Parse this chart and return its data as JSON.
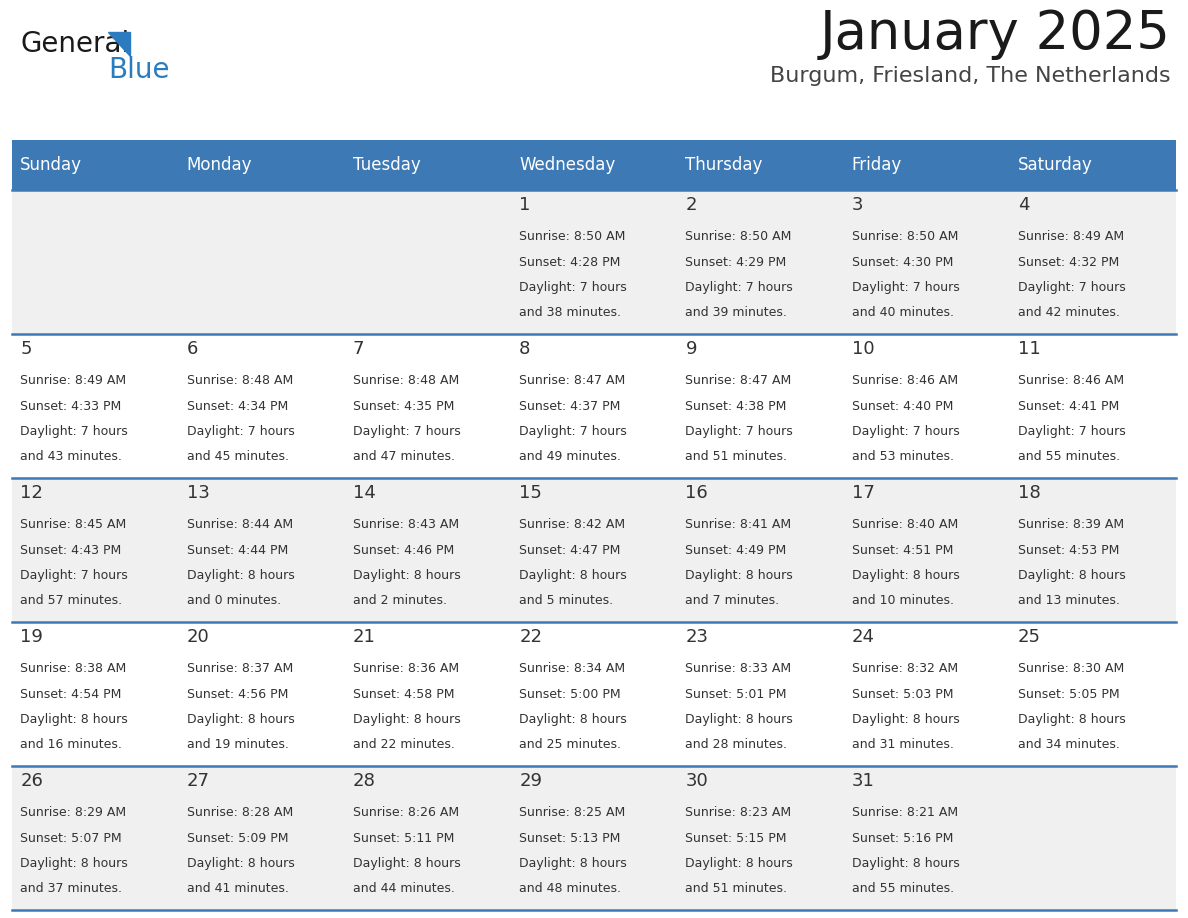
{
  "title": "January 2025",
  "subtitle": "Burgum, Friesland, The Netherlands",
  "days_of_week": [
    "Sunday",
    "Monday",
    "Tuesday",
    "Wednesday",
    "Thursday",
    "Friday",
    "Saturday"
  ],
  "header_bg": "#3d7ab5",
  "header_text": "#ffffff",
  "row_bg_odd": "#f0f0f0",
  "row_bg_even": "#ffffff",
  "day_num_color": "#333333",
  "info_text_color": "#333333",
  "separator_color": "#3d7ab5",
  "cell_data": [
    [
      null,
      null,
      null,
      {
        "day": 1,
        "sunrise": "8:50 AM",
        "sunset": "4:28 PM",
        "daylight": "7 hours",
        "daylight2": "and 38 minutes."
      },
      {
        "day": 2,
        "sunrise": "8:50 AM",
        "sunset": "4:29 PM",
        "daylight": "7 hours",
        "daylight2": "and 39 minutes."
      },
      {
        "day": 3,
        "sunrise": "8:50 AM",
        "sunset": "4:30 PM",
        "daylight": "7 hours",
        "daylight2": "and 40 minutes."
      },
      {
        "day": 4,
        "sunrise": "8:49 AM",
        "sunset": "4:32 PM",
        "daylight": "7 hours",
        "daylight2": "and 42 minutes."
      }
    ],
    [
      {
        "day": 5,
        "sunrise": "8:49 AM",
        "sunset": "4:33 PM",
        "daylight": "7 hours",
        "daylight2": "and 43 minutes."
      },
      {
        "day": 6,
        "sunrise": "8:48 AM",
        "sunset": "4:34 PM",
        "daylight": "7 hours",
        "daylight2": "and 45 minutes."
      },
      {
        "day": 7,
        "sunrise": "8:48 AM",
        "sunset": "4:35 PM",
        "daylight": "7 hours",
        "daylight2": "and 47 minutes."
      },
      {
        "day": 8,
        "sunrise": "8:47 AM",
        "sunset": "4:37 PM",
        "daylight": "7 hours",
        "daylight2": "and 49 minutes."
      },
      {
        "day": 9,
        "sunrise": "8:47 AM",
        "sunset": "4:38 PM",
        "daylight": "7 hours",
        "daylight2": "and 51 minutes."
      },
      {
        "day": 10,
        "sunrise": "8:46 AM",
        "sunset": "4:40 PM",
        "daylight": "7 hours",
        "daylight2": "and 53 minutes."
      },
      {
        "day": 11,
        "sunrise": "8:46 AM",
        "sunset": "4:41 PM",
        "daylight": "7 hours",
        "daylight2": "and 55 minutes."
      }
    ],
    [
      {
        "day": 12,
        "sunrise": "8:45 AM",
        "sunset": "4:43 PM",
        "daylight": "7 hours",
        "daylight2": "and 57 minutes."
      },
      {
        "day": 13,
        "sunrise": "8:44 AM",
        "sunset": "4:44 PM",
        "daylight": "8 hours",
        "daylight2": "and 0 minutes."
      },
      {
        "day": 14,
        "sunrise": "8:43 AM",
        "sunset": "4:46 PM",
        "daylight": "8 hours",
        "daylight2": "and 2 minutes."
      },
      {
        "day": 15,
        "sunrise": "8:42 AM",
        "sunset": "4:47 PM",
        "daylight": "8 hours",
        "daylight2": "and 5 minutes."
      },
      {
        "day": 16,
        "sunrise": "8:41 AM",
        "sunset": "4:49 PM",
        "daylight": "8 hours",
        "daylight2": "and 7 minutes."
      },
      {
        "day": 17,
        "sunrise": "8:40 AM",
        "sunset": "4:51 PM",
        "daylight": "8 hours",
        "daylight2": "and 10 minutes."
      },
      {
        "day": 18,
        "sunrise": "8:39 AM",
        "sunset": "4:53 PM",
        "daylight": "8 hours",
        "daylight2": "and 13 minutes."
      }
    ],
    [
      {
        "day": 19,
        "sunrise": "8:38 AM",
        "sunset": "4:54 PM",
        "daylight": "8 hours",
        "daylight2": "and 16 minutes."
      },
      {
        "day": 20,
        "sunrise": "8:37 AM",
        "sunset": "4:56 PM",
        "daylight": "8 hours",
        "daylight2": "and 19 minutes."
      },
      {
        "day": 21,
        "sunrise": "8:36 AM",
        "sunset": "4:58 PM",
        "daylight": "8 hours",
        "daylight2": "and 22 minutes."
      },
      {
        "day": 22,
        "sunrise": "8:34 AM",
        "sunset": "5:00 PM",
        "daylight": "8 hours",
        "daylight2": "and 25 minutes."
      },
      {
        "day": 23,
        "sunrise": "8:33 AM",
        "sunset": "5:01 PM",
        "daylight": "8 hours",
        "daylight2": "and 28 minutes."
      },
      {
        "day": 24,
        "sunrise": "8:32 AM",
        "sunset": "5:03 PM",
        "daylight": "8 hours",
        "daylight2": "and 31 minutes."
      },
      {
        "day": 25,
        "sunrise": "8:30 AM",
        "sunset": "5:05 PM",
        "daylight": "8 hours",
        "daylight2": "and 34 minutes."
      }
    ],
    [
      {
        "day": 26,
        "sunrise": "8:29 AM",
        "sunset": "5:07 PM",
        "daylight": "8 hours",
        "daylight2": "and 37 minutes."
      },
      {
        "day": 27,
        "sunrise": "8:28 AM",
        "sunset": "5:09 PM",
        "daylight": "8 hours",
        "daylight2": "and 41 minutes."
      },
      {
        "day": 28,
        "sunrise": "8:26 AM",
        "sunset": "5:11 PM",
        "daylight": "8 hours",
        "daylight2": "and 44 minutes."
      },
      {
        "day": 29,
        "sunrise": "8:25 AM",
        "sunset": "5:13 PM",
        "daylight": "8 hours",
        "daylight2": "and 48 minutes."
      },
      {
        "day": 30,
        "sunrise": "8:23 AM",
        "sunset": "5:15 PM",
        "daylight": "8 hours",
        "daylight2": "and 51 minutes."
      },
      {
        "day": 31,
        "sunrise": "8:21 AM",
        "sunset": "5:16 PM",
        "daylight": "8 hours",
        "daylight2": "and 55 minutes."
      },
      null
    ]
  ],
  "logo_color_general": "#1a1a1a",
  "logo_color_blue": "#2b7bbf",
  "title_fontsize": 38,
  "subtitle_fontsize": 16,
  "header_fontsize": 12,
  "day_num_fontsize": 13,
  "info_fontsize": 9
}
